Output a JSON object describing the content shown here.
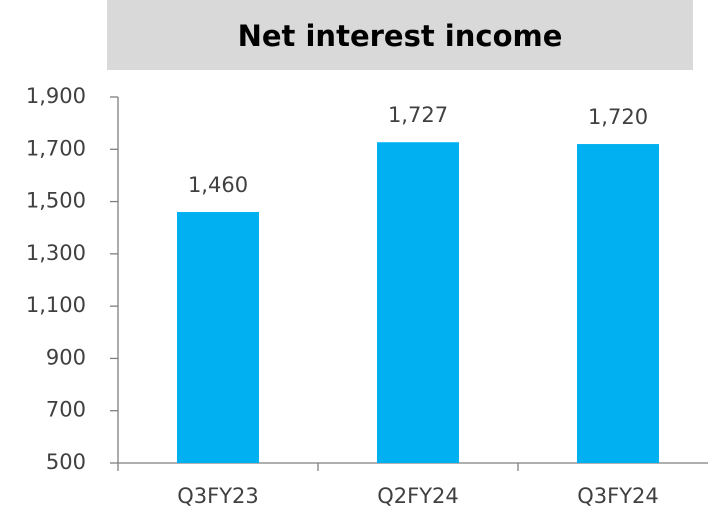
{
  "chart_data": {
    "type": "bar",
    "title": "Net interest income",
    "categories": [
      "Q3FY23",
      "Q2FY24",
      "Q3FY24"
    ],
    "values": [
      1460,
      1727,
      1720
    ],
    "value_labels": [
      "1,460",
      "1,727",
      "1,720"
    ],
    "color": "#00b0f0",
    "ylim": [
      500,
      1900
    ],
    "yticks": [
      500,
      700,
      900,
      {
        "value": 1100,
        "label": "1,100"
      },
      {
        "value": 1300,
        "label": "1,300"
      },
      {
        "value": 1500,
        "label": "1,500"
      },
      {
        "value": 1700,
        "label": "1,700"
      },
      {
        "value": 1900,
        "label": "1,900"
      }
    ],
    "grid": false
  }
}
